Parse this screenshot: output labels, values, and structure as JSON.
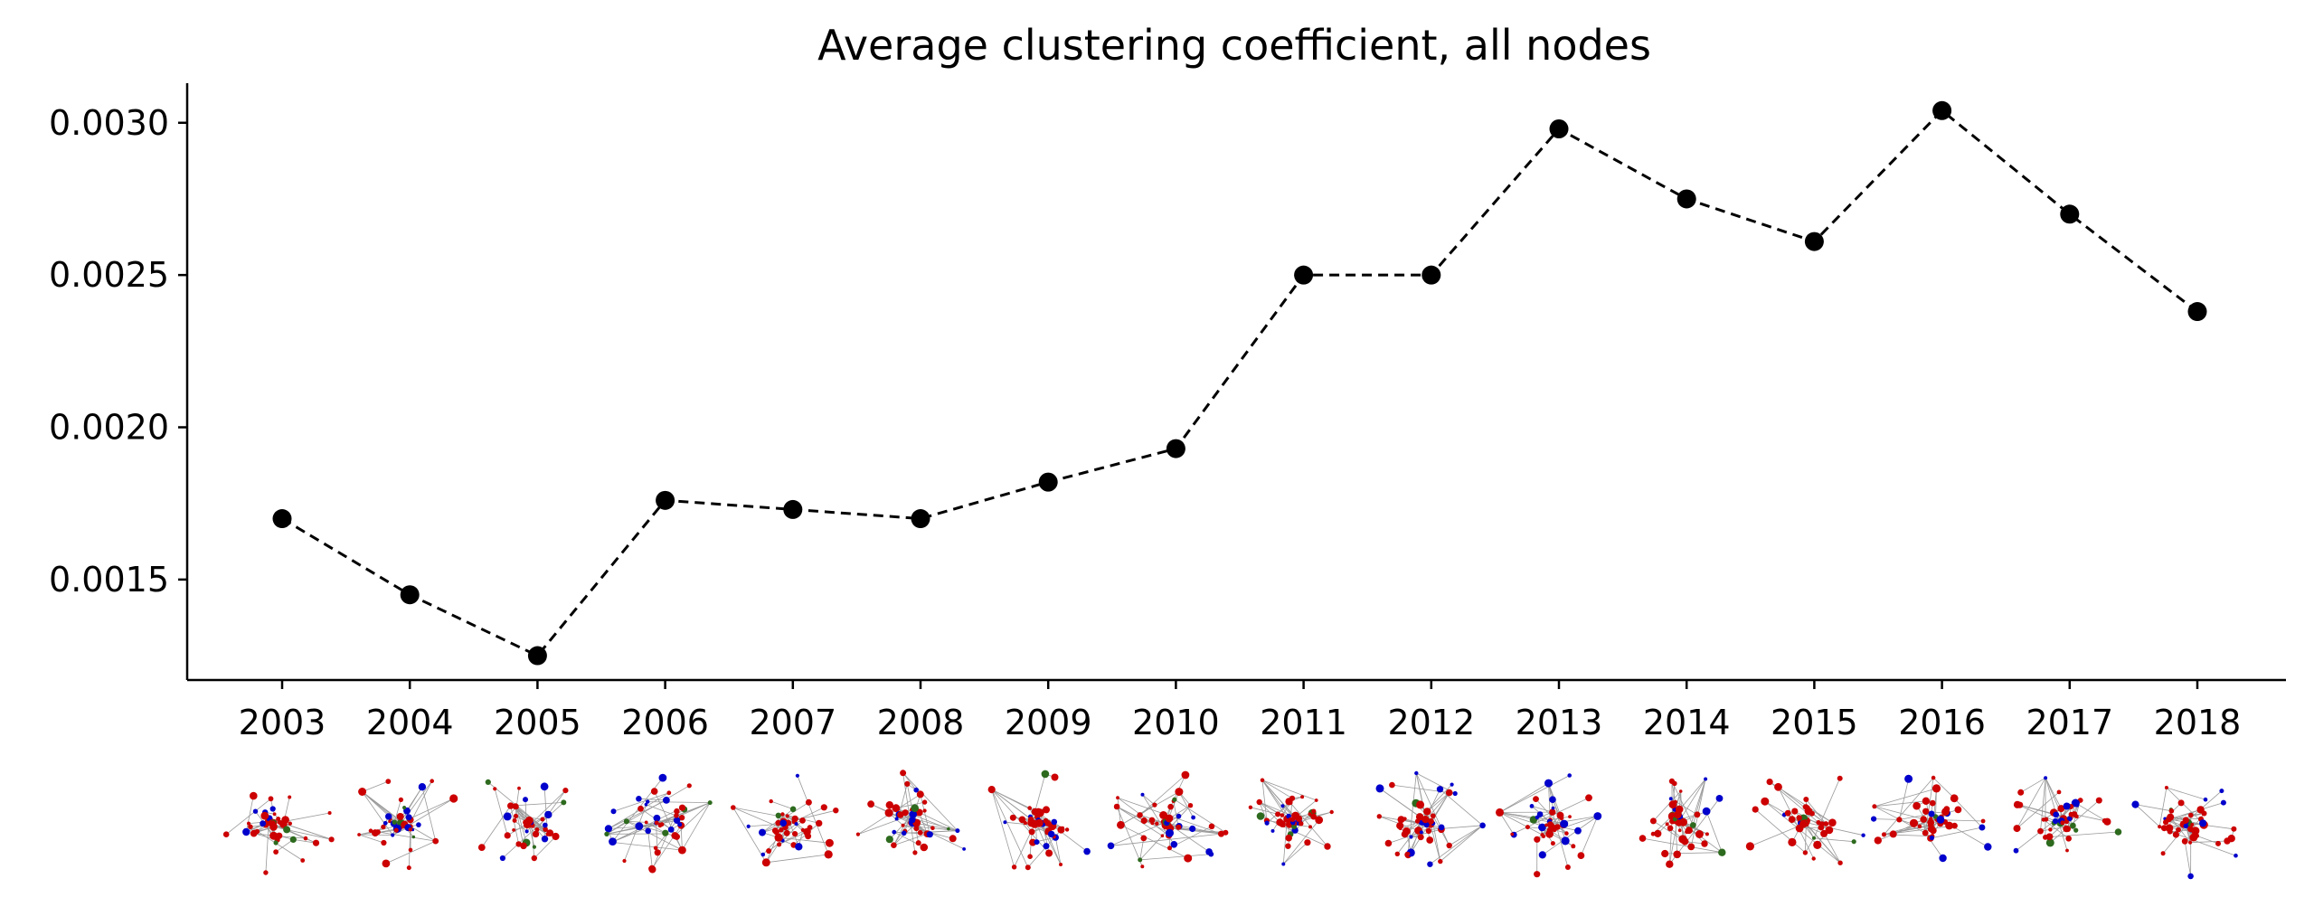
{
  "chart_data": {
    "type": "line",
    "title": "Average clustering coefficient, all nodes",
    "xlabel": "",
    "ylabel": "",
    "categories": [
      "2003",
      "2004",
      "2005",
      "2006",
      "2007",
      "2008",
      "2009",
      "2010",
      "2011",
      "2012",
      "2013",
      "2014",
      "2015",
      "2016",
      "2017",
      "2018"
    ],
    "series": [
      {
        "values": [
          0.0017,
          0.00145,
          0.00125,
          0.00176,
          0.00173,
          0.0017,
          0.00182,
          0.00193,
          0.0025,
          0.0025,
          0.00298,
          0.00275,
          0.00261,
          0.00304,
          0.0027,
          0.00238
        ]
      }
    ],
    "ylim": [
      0.00117,
      0.00313
    ],
    "yticks": [
      0.0015,
      0.002,
      0.0025,
      0.003
    ],
    "ytick_labels": [
      "0.0015",
      "0.0020",
      "0.0025",
      "0.0030"
    ],
    "grid": false,
    "line_style": "dashed",
    "marker": "circle",
    "line_color": "#000000",
    "thumbnail_colors": {
      "node_primary": "#cc0000",
      "node_secondary": "#0000cc",
      "node_tertiary": "#2d6a1e",
      "edge": "#999999"
    }
  }
}
